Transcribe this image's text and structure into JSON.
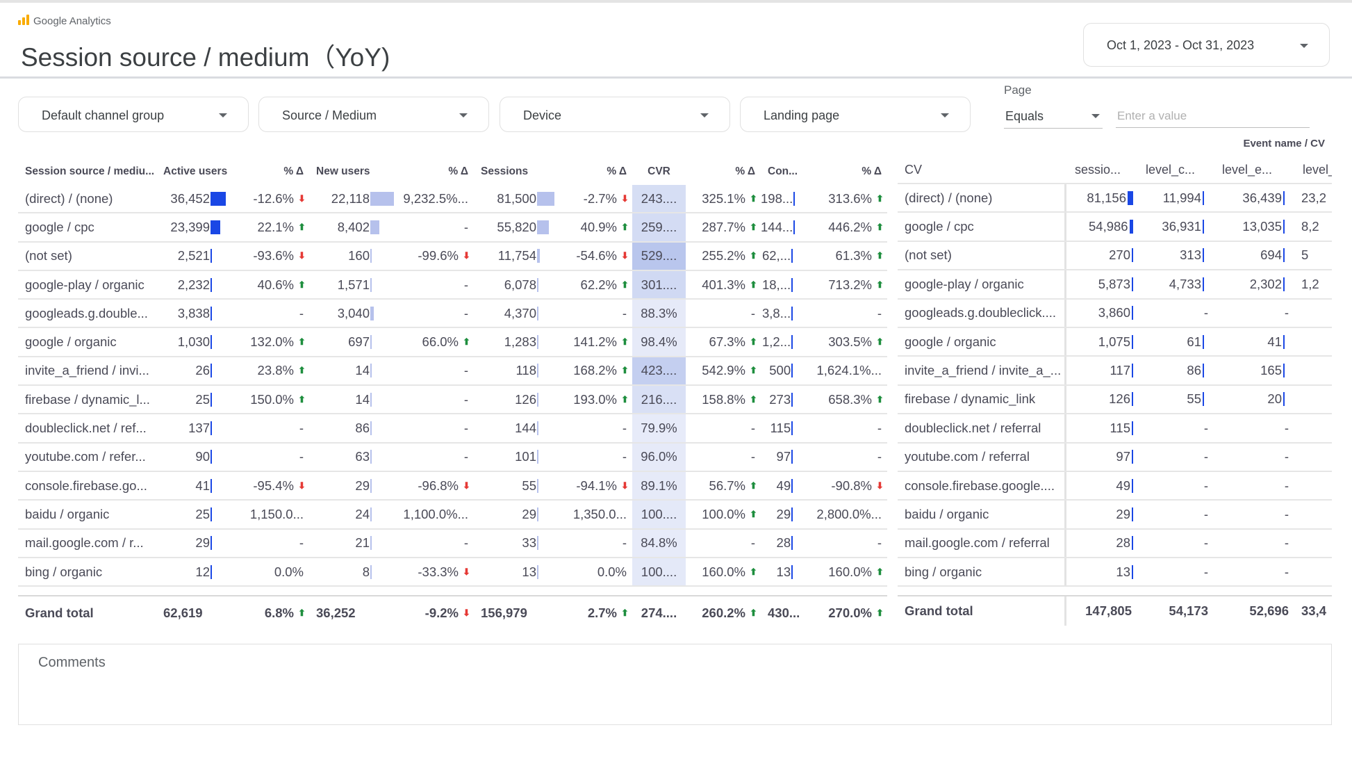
{
  "app": {
    "name": "Google Analytics"
  },
  "header": {
    "title": "Session source / medium（YoY)",
    "date_range": "Oct 1, 2023 - Oct 31, 2023"
  },
  "filters": {
    "channel": "Default channel group",
    "source_medium": "Source / Medium",
    "device": "Device",
    "landing_page": "Landing page",
    "page_label": "Page",
    "page_operator": "Equals",
    "page_value_placeholder": "Enter a value"
  },
  "colors": {
    "bar_dark": "#1a47e5",
    "bar_light": "#b6c1ec",
    "up": "#1e8e3e",
    "down": "#e53935",
    "cvr_base": "#dde3f7"
  },
  "left_table": {
    "headers": [
      "Session source / mediu...",
      "Active users",
      "% Δ",
      "New users",
      "% Δ",
      "Sessions",
      "% Δ",
      "CVR",
      "% Δ",
      "Con...",
      "% Δ"
    ],
    "rows": [
      [
        "(direct) / (none)",
        "36,452",
        "-12.6%|down",
        "22,118",
        "9,232.5%...",
        "81,500",
        "-2.7%|down",
        "243....",
        "325.1%|up",
        "198...",
        "313.6%|up"
      ],
      [
        "google / cpc",
        "23,399",
        "22.1%|up",
        "8,402",
        "-",
        "55,820",
        "40.9%|up",
        "259....",
        "287.7%|up",
        "144...",
        "446.2%|up"
      ],
      [
        "(not set)",
        "2,521",
        "-93.6%|down",
        "160",
        "-99.6%|down",
        "11,754",
        "-54.6%|down",
        "529....",
        "255.2%|up",
        "62,...",
        "61.3%|up"
      ],
      [
        "google-play / organic",
        "2,232",
        "40.6%|up",
        "1,571",
        "-",
        "6,078",
        "62.2%|up",
        "301....",
        "401.3%|up",
        "18,...",
        "713.2%|up"
      ],
      [
        "googleads.g.double...",
        "3,838",
        "-",
        "3,040",
        "-",
        "4,370",
        "-",
        "88.3%",
        "-",
        "3,8...",
        "-"
      ],
      [
        "google / organic",
        "1,030",
        "132.0%|up",
        "697",
        "66.0%|up",
        "1,283",
        "141.2%|up",
        "98.4%",
        "67.3%|up",
        "1,2...",
        "303.5%|up"
      ],
      [
        "invite_a_friend / invi...",
        "26",
        "23.8%|up",
        "14",
        "-",
        "118",
        "168.2%|up",
        "423....",
        "542.9%|up",
        "500",
        "1,624.1%..."
      ],
      [
        "firebase / dynamic_l...",
        "25",
        "150.0%|up",
        "14",
        "-",
        "126",
        "193.0%|up",
        "216....",
        "158.8%|up",
        "273",
        "658.3%|up"
      ],
      [
        "doubleclick.net / ref...",
        "137",
        "-",
        "86",
        "-",
        "144",
        "-",
        "79.9%",
        "-",
        "115",
        "-"
      ],
      [
        "youtube.com / refer...",
        "90",
        "-",
        "63",
        "-",
        "101",
        "-",
        "96.0%",
        "-",
        "97",
        "-"
      ],
      [
        "console.firebase.go...",
        "41",
        "-95.4%|down",
        "29",
        "-96.8%|down",
        "55",
        "-94.1%|down",
        "89.1%",
        "56.7%|up",
        "49",
        "-90.8%|down"
      ],
      [
        "baidu / organic",
        "25",
        "1,150.0...",
        "24",
        "1,100.0%...",
        "29",
        "1,350.0...",
        "100....",
        "100.0%|up",
        "29",
        "2,800.0%..."
      ],
      [
        "mail.google.com / r...",
        "29",
        "-",
        "21",
        "-",
        "33",
        "-",
        "84.8%",
        "-",
        "28",
        "-"
      ],
      [
        "bing / organic",
        "12",
        "0.0%",
        "8",
        "-33.3%|down",
        "13",
        "0.0%",
        "100....",
        "160.0%|up",
        "13",
        "160.0%|up"
      ]
    ],
    "total": [
      "Grand total",
      "62,619",
      "6.8%|up",
      "36,252",
      "-9.2%|down",
      "156,979",
      "2.7%|up",
      "274....",
      "260.2%|up",
      "430...",
      "270.0%|up"
    ]
  },
  "right_table": {
    "super_header": "Event name / CV",
    "headers": [
      "CV",
      "sessio...",
      "level_c...",
      "level_e...",
      "level_s"
    ],
    "rows": [
      [
        "(direct) / (none)",
        "81,156",
        "11,994",
        "36,439",
        "23,2"
      ],
      [
        "google / cpc",
        "54,986",
        "36,931",
        "13,035",
        "8,2"
      ],
      [
        "(not set)",
        "270",
        "313",
        "694",
        "5"
      ],
      [
        "google-play / organic",
        "5,873",
        "4,733",
        "2,302",
        "1,2"
      ],
      [
        "googleads.g.doubleclick....",
        "3,860",
        "-",
        "-",
        ""
      ],
      [
        "google / organic",
        "1,075",
        "61",
        "41",
        ""
      ],
      [
        "invite_a_friend / invite_a_...",
        "117",
        "86",
        "165",
        ""
      ],
      [
        "firebase / dynamic_link",
        "126",
        "55",
        "20",
        ""
      ],
      [
        "doubleclick.net / referral",
        "115",
        "-",
        "-",
        ""
      ],
      [
        "youtube.com / referral",
        "97",
        "-",
        "-",
        ""
      ],
      [
        "console.firebase.google....",
        "49",
        "-",
        "-",
        ""
      ],
      [
        "baidu / organic",
        "29",
        "-",
        "-",
        ""
      ],
      [
        "mail.google.com / referral",
        "28",
        "-",
        "-",
        ""
      ],
      [
        "bing / organic",
        "13",
        "-",
        "-",
        ""
      ]
    ],
    "total": [
      "Grand total",
      "147,805",
      "54,173",
      "52,696",
      "33,4"
    ]
  },
  "comments": {
    "label": "Comments"
  }
}
